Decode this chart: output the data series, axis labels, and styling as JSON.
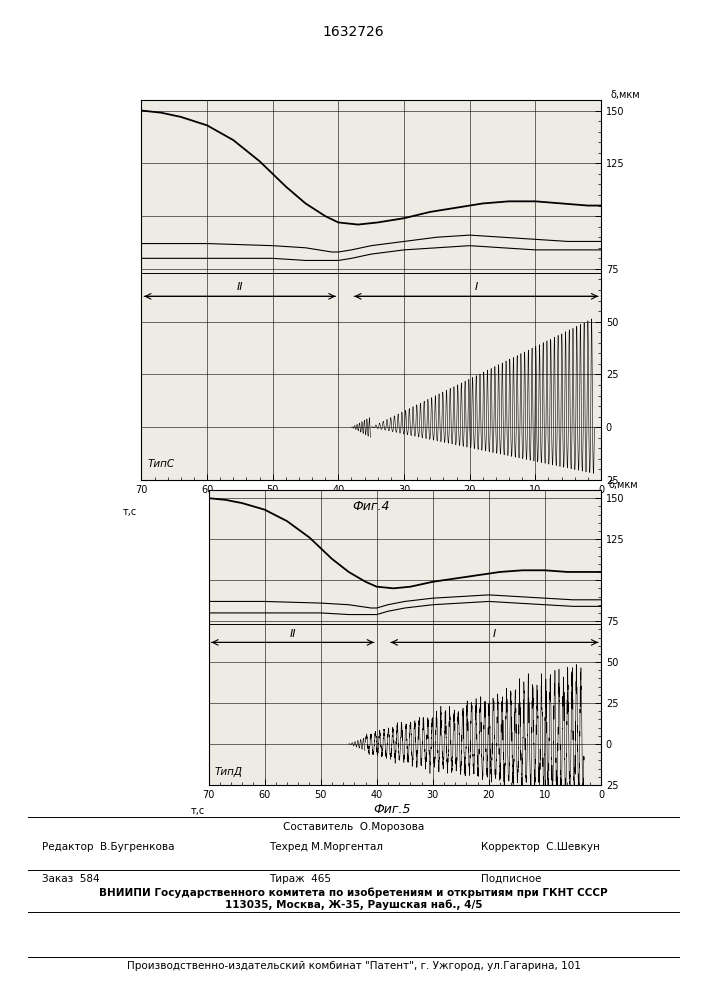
{
  "title": "1632726",
  "fig4_caption": "Фиг.4",
  "fig5_caption": "Фиг.5",
  "xlabel": "т,с",
  "ylabel_text": "δ,мкм",
  "fig4_type_label": "ТипС",
  "fig5_type_label": "ТипД",
  "region_I": "I",
  "region_II": "II",
  "footer_sestavitel": "Составитель  О.Морозова",
  "footer_redaktor": "Редактор  В.Бугренкова",
  "footer_tehred": "Техред М.Моргентал",
  "footer_korrektor": "Корректор  С.Шевкун",
  "footer_zakaz": "Заказ  584",
  "footer_tirazh": "Тираж  465",
  "footer_podpisnoe": "Подписное",
  "footer_vniipи": "ВНИИПИ Государственного комитета по изобретениям и открытиям при ГКНТ СССР",
  "footer_address": "113035, Москва, Ж-35, Раушская наб., 4/5",
  "footer_patent": "Производственно-издательский комбинат \"Патент\", г. Ужгород, ул.Гагарина, 101"
}
